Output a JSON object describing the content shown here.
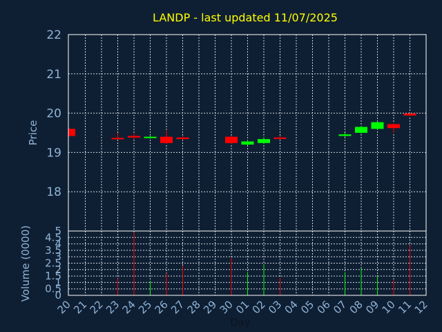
{
  "chart_data": [
    {
      "type": "candlestick",
      "title": "LANDP - last updated 11/07/2025",
      "ylabel": "Price",
      "ylim": [
        17.0,
        22.0
      ],
      "yticks": [
        "18",
        "19",
        "20",
        "21",
        "22"
      ],
      "grid": true,
      "colors": {
        "up": "#00ff00",
        "down": "#ff0000"
      },
      "candles": [
        {
          "day": "20",
          "open": 19.6,
          "close": 19.42,
          "high": 19.62,
          "low": 19.4
        },
        {
          "day": "23",
          "open": 19.37,
          "close": 19.35,
          "high": 19.5,
          "low": 19.33
        },
        {
          "day": "24",
          "open": 19.42,
          "close": 19.38,
          "high": 19.48,
          "low": 19.33
        },
        {
          "day": "25",
          "open": 19.37,
          "close": 19.4,
          "high": 19.44,
          "low": 19.35
        },
        {
          "day": "26",
          "open": 19.4,
          "close": 19.24,
          "high": 19.55,
          "low": 19.22
        },
        {
          "day": "27",
          "open": 19.38,
          "close": 19.34,
          "high": 19.42,
          "low": 19.32
        },
        {
          "day": "30",
          "open": 19.4,
          "close": 19.24,
          "high": 19.42,
          "low": 19.21
        },
        {
          "day": "01",
          "open": 19.2,
          "close": 19.28,
          "high": 19.32,
          "low": 19.18
        },
        {
          "day": "02",
          "open": 19.24,
          "close": 19.34,
          "high": 19.4,
          "low": 19.22
        },
        {
          "day": "03",
          "open": 19.38,
          "close": 19.35,
          "high": 19.43,
          "low": 19.33
        },
        {
          "day": "07",
          "open": 19.42,
          "close": 19.46,
          "high": 19.5,
          "low": 19.4
        },
        {
          "day": "08",
          "open": 19.5,
          "close": 19.65,
          "high": 19.68,
          "low": 19.48
        },
        {
          "day": "09",
          "open": 19.6,
          "close": 19.77,
          "high": 19.79,
          "low": 19.58
        },
        {
          "day": "10",
          "open": 19.72,
          "close": 19.62,
          "high": 19.75,
          "low": 19.5
        },
        {
          "day": "11",
          "open": 19.99,
          "close": 19.94,
          "high": 20.02,
          "low": 19.92
        }
      ]
    },
    {
      "type": "bar",
      "ylabel": "Volume (0000)",
      "xlabel": "Day",
      "ylim": [
        0,
        5
      ],
      "yticks": [
        "0",
        "0.5",
        "1",
        "1.5",
        "2",
        "2.5",
        "3",
        "3.5",
        "4",
        "4.5",
        "5"
      ],
      "categories": [
        "20",
        "21",
        "22",
        "23",
        "24",
        "25",
        "26",
        "27",
        "28",
        "29",
        "30",
        "01",
        "02",
        "03",
        "04",
        "05",
        "06",
        "07",
        "08",
        "09",
        "10",
        "11",
        "12"
      ],
      "bars": [
        {
          "day": "23",
          "value": 1.3,
          "color": "#ff0000"
        },
        {
          "day": "24",
          "value": 4.9,
          "color": "#ff0000"
        },
        {
          "day": "25",
          "value": 1.1,
          "color": "#00ff00"
        },
        {
          "day": "26",
          "value": 1.7,
          "color": "#ff0000"
        },
        {
          "day": "27",
          "value": 2.3,
          "color": "#ff0000"
        },
        {
          "day": "30",
          "value": 2.9,
          "color": "#ff0000"
        },
        {
          "day": "01",
          "value": 1.8,
          "color": "#00ff00"
        },
        {
          "day": "02",
          "value": 2.4,
          "color": "#00ff00"
        },
        {
          "day": "03",
          "value": 1.4,
          "color": "#ff0000"
        },
        {
          "day": "07",
          "value": 1.8,
          "color": "#00ff00"
        },
        {
          "day": "08",
          "value": 2.1,
          "color": "#00ff00"
        },
        {
          "day": "09",
          "value": 1.5,
          "color": "#00ff00"
        },
        {
          "day": "10",
          "value": 1.2,
          "color": "#ff0000"
        },
        {
          "day": "11",
          "value": 3.9,
          "color": "#ff0000"
        }
      ]
    }
  ]
}
